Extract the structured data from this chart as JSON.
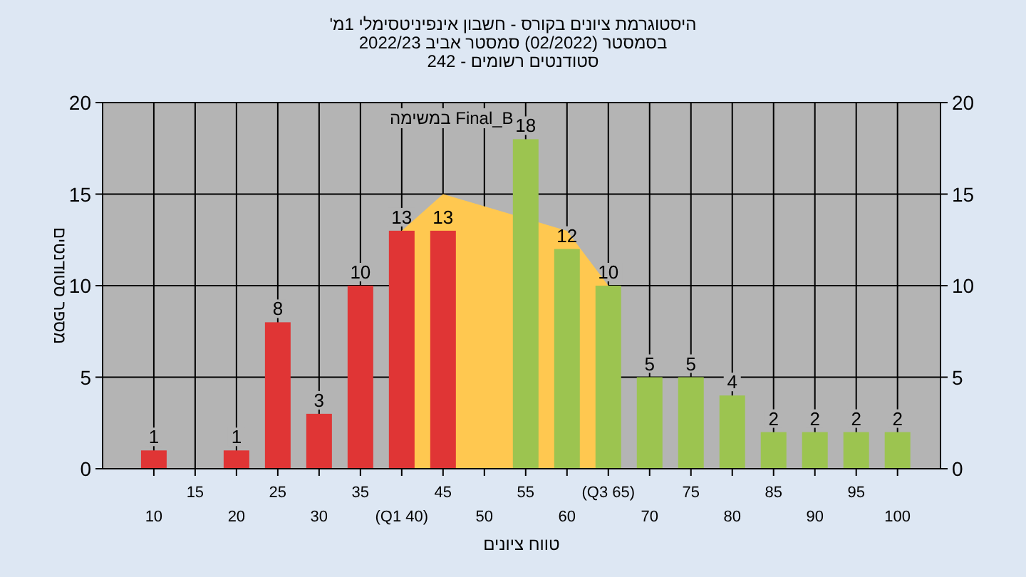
{
  "chart_data": {
    "type": "bar",
    "title": "היסטוגרמת ציונים בקורס - חשבון אינפיניטסימלי 1מ'",
    "subtitle": "בסמסטר (02/2022) סמסטר אביב 2022/23",
    "annotations": [
      "סטודנטים רשומים - 242"
    ],
    "xlabel": "טווח ציונים",
    "ylabel": "מספר סטודנטים",
    "categories": [
      "10",
      "15",
      "20",
      "25",
      "30",
      "35",
      "(Q1 40)",
      "45",
      "50",
      "55",
      "60",
      "(Q3 65)",
      "70",
      "75",
      "80",
      "85",
      "90",
      "95",
      "100"
    ],
    "series": [
      {
        "type": "area",
        "name": "Final_B במשימה",
        "color": "#ffc850",
        "x": [
          "(Q1 40)",
          "45",
          "60",
          "(Q3 65)"
        ],
        "values": [
          13,
          15,
          13,
          10
        ]
      },
      {
        "type": "bar",
        "colors": [
          "#e03535",
          null,
          "#e03535",
          "#e03535",
          "#e03535",
          "#e03535",
          "#e03535",
          "#e03535",
          null,
          "#9cc450",
          "#9cc450",
          "#9cc450",
          "#9cc450",
          "#9cc450",
          "#9cc450",
          "#9cc450",
          "#9cc450",
          "#9cc450",
          "#9cc450"
        ],
        "values": [
          1,
          null,
          1,
          8,
          3,
          10,
          13,
          13,
          null,
          18,
          12,
          10,
          5,
          5,
          4,
          2,
          2,
          2,
          2
        ],
        "value_labels": [
          "1",
          null,
          "1",
          "8",
          "3",
          "10",
          "13",
          "13",
          null,
          "18",
          "12",
          "10",
          "5",
          "5",
          "4",
          "2",
          "2",
          "2",
          "2"
        ]
      }
    ],
    "ylim": [
      0,
      20
    ],
    "yticks": [
      0,
      5,
      10,
      15,
      20
    ],
    "y2lim": [
      0,
      20
    ],
    "y2ticks": [
      0,
      5,
      10,
      15,
      20
    ],
    "grid": true,
    "legend": false
  }
}
